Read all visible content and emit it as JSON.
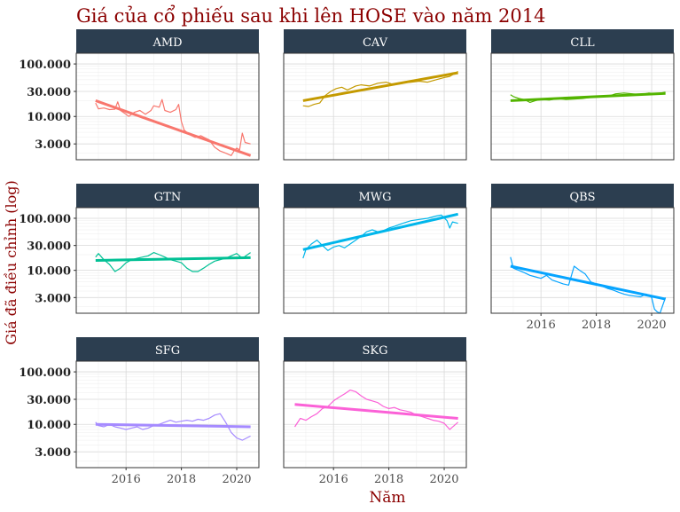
{
  "title": "Giá của cổ phiếu sau khi lên HOSE vào năm 2014",
  "colors": {
    "title": "#8b0000",
    "strip": "#2c3e50",
    "strip_text": "#ffffff",
    "grid": "#d9d9d9",
    "axis_text": "#4d4d4d"
  },
  "chart_data": {
    "type": "line",
    "title": "Giá của cổ phiếu sau khi lên HOSE vào năm 2014",
    "xlabel": "Năm",
    "ylabel": "Giá đã điều chỉnh (log)",
    "y_scale": "log10",
    "ylim": [
      1500,
      160000
    ],
    "xlim": [
      2014.2,
      2020.8
    ],
    "x_ticks": [
      2016,
      2018,
      2020
    ],
    "x_tick_labels": [
      "2016",
      "2018",
      "2020"
    ],
    "y_ticks": [
      3000,
      10000,
      30000,
      100000
    ],
    "y_tick_labels": [
      "3.000",
      "10.000",
      "30.000",
      "100.000"
    ],
    "series": [
      {
        "name": "AMD",
        "color": "#f8766d",
        "x": [
          2014.9,
          2015.0,
          2015.2,
          2015.4,
          2015.6,
          2015.7,
          2015.8,
          2016.0,
          2016.1,
          2016.3,
          2016.5,
          2016.7,
          2016.9,
          2017.0,
          2017.2,
          2017.3,
          2017.4,
          2017.6,
          2017.8,
          2017.9,
          2018.0,
          2018.1,
          2018.3,
          2018.5,
          2018.7,
          2018.9,
          2019.0,
          2019.2,
          2019.4,
          2019.6,
          2019.8,
          2019.9,
          2020.0,
          2020.1,
          2020.2,
          2020.3,
          2020.5
        ],
        "values": [
          18000,
          14000,
          14500,
          13500,
          13800,
          19000,
          13000,
          11000,
          10000,
          12000,
          13000,
          11000,
          13000,
          16000,
          15000,
          21000,
          13000,
          12000,
          13500,
          17000,
          8000,
          5500,
          4500,
          4000,
          4300,
          3800,
          3600,
          2600,
          2200,
          2000,
          1800,
          2200,
          2500,
          2300,
          4800,
          3200,
          3000
        ],
        "trend": [
          20000,
          1800
        ]
      },
      {
        "name": "CAV",
        "color": "#c49a00",
        "x": [
          2014.9,
          2015.1,
          2015.3,
          2015.5,
          2015.7,
          2015.9,
          2016.1,
          2016.3,
          2016.5,
          2016.8,
          2017.0,
          2017.3,
          2017.6,
          2017.9,
          2018.2,
          2018.5,
          2018.8,
          2019.1,
          2019.4,
          2019.7,
          2020.0,
          2020.2,
          2020.5
        ],
        "values": [
          16000,
          15500,
          17000,
          18000,
          25000,
          30000,
          34000,
          36000,
          32000,
          38000,
          40000,
          38000,
          43000,
          45000,
          40000,
          44000,
          45000,
          47000,
          45000,
          50000,
          55000,
          58000,
          72000
        ],
        "trend": [
          20000,
          68000
        ]
      },
      {
        "name": "CLL",
        "color": "#53b400",
        "x": [
          2014.9,
          2015.0,
          2015.2,
          2015.4,
          2015.6,
          2015.8,
          2016.0,
          2016.3,
          2016.6,
          2016.9,
          2017.2,
          2017.5,
          2017.8,
          2018.1,
          2018.4,
          2018.7,
          2019.0,
          2019.3,
          2019.6,
          2019.9,
          2020.2,
          2020.5
        ],
        "values": [
          26000,
          24000,
          22000,
          21000,
          18500,
          20000,
          21000,
          20500,
          22000,
          21000,
          21500,
          22000,
          23000,
          24000,
          24000,
          27000,
          28000,
          27000,
          26000,
          28000,
          27000,
          29000
        ],
        "trend": [
          20000,
          27500
        ]
      },
      {
        "name": "GTN",
        "color": "#00c094",
        "x": [
          2014.9,
          2015.0,
          2015.2,
          2015.4,
          2015.6,
          2015.8,
          2016.0,
          2016.2,
          2016.4,
          2016.6,
          2016.8,
          2017.0,
          2017.2,
          2017.4,
          2017.6,
          2017.8,
          2018.0,
          2018.2,
          2018.4,
          2018.6,
          2018.8,
          2019.0,
          2019.2,
          2019.4,
          2019.6,
          2019.8,
          2020.0,
          2020.2,
          2020.5
        ],
        "values": [
          18000,
          21000,
          16000,
          13000,
          9500,
          11000,
          14000,
          16000,
          17000,
          18000,
          19000,
          22000,
          20000,
          18000,
          16000,
          15000,
          14000,
          11000,
          9500,
          9500,
          11000,
          13000,
          15000,
          16000,
          17000,
          19000,
          21000,
          17000,
          22000
        ],
        "trend": [
          15500,
          17500
        ]
      },
      {
        "name": "MWG",
        "color": "#00b6eb",
        "x": [
          2014.9,
          2015.0,
          2015.2,
          2015.4,
          2015.6,
          2015.8,
          2016.0,
          2016.2,
          2016.4,
          2016.6,
          2016.8,
          2017.0,
          2017.2,
          2017.4,
          2017.6,
          2017.8,
          2018.0,
          2018.2,
          2018.5,
          2018.8,
          2019.1,
          2019.4,
          2019.7,
          2019.9,
          2020.1,
          2020.2,
          2020.3,
          2020.5
        ],
        "values": [
          17000,
          25000,
          32000,
          38000,
          30000,
          24000,
          28000,
          30000,
          27000,
          32000,
          38000,
          45000,
          55000,
          60000,
          55000,
          58000,
          65000,
          70000,
          80000,
          90000,
          95000,
          100000,
          110000,
          115000,
          90000,
          65000,
          85000,
          80000
        ],
        "trend": [
          25000,
          120000
        ]
      },
      {
        "name": "QBS",
        "color": "#06a4ff",
        "x": [
          2014.9,
          2015.0,
          2015.2,
          2015.4,
          2015.6,
          2015.8,
          2016.0,
          2016.2,
          2016.4,
          2016.6,
          2016.8,
          2017.0,
          2017.2,
          2017.4,
          2017.6,
          2017.8,
          2018.0,
          2018.2,
          2018.4,
          2018.6,
          2018.8,
          2019.0,
          2019.2,
          2019.4,
          2019.6,
          2019.8,
          2020.0,
          2020.1,
          2020.2,
          2020.3,
          2020.5
        ],
        "values": [
          18000,
          11000,
          10000,
          9000,
          8000,
          7500,
          7000,
          8000,
          6500,
          6000,
          5500,
          5200,
          12000,
          10000,
          8500,
          6000,
          5500,
          5000,
          4500,
          4200,
          3800,
          3500,
          3300,
          3200,
          3100,
          3500,
          3000,
          1800,
          1600,
          1500,
          3000
        ],
        "trend": [
          12000,
          2800
        ]
      },
      {
        "name": "SFG",
        "color": "#a58aff",
        "x": [
          2014.9,
          2015.0,
          2015.2,
          2015.4,
          2015.6,
          2015.8,
          2016.0,
          2016.2,
          2016.4,
          2016.6,
          2016.8,
          2017.0,
          2017.2,
          2017.4,
          2017.6,
          2017.8,
          2018.0,
          2018.2,
          2018.4,
          2018.6,
          2018.8,
          2019.0,
          2019.2,
          2019.4,
          2019.6,
          2019.8,
          2020.0,
          2020.2,
          2020.5
        ],
        "values": [
          11000,
          9500,
          9000,
          10000,
          9000,
          8500,
          8000,
          8500,
          9000,
          8000,
          8500,
          9500,
          10000,
          11000,
          12000,
          11000,
          11500,
          12000,
          11500,
          12500,
          12000,
          13000,
          15000,
          16000,
          11000,
          7000,
          5500,
          5000,
          6000
        ],
        "trend": [
          10000,
          9000
        ]
      },
      {
        "name": "SKG",
        "color": "#fb61d7",
        "x": [
          2014.6,
          2014.8,
          2015.0,
          2015.2,
          2015.4,
          2015.6,
          2015.8,
          2016.0,
          2016.2,
          2016.4,
          2016.6,
          2016.8,
          2017.0,
          2017.2,
          2017.4,
          2017.6,
          2017.8,
          2018.0,
          2018.2,
          2018.4,
          2018.6,
          2018.8,
          2019.0,
          2019.2,
          2019.4,
          2019.6,
          2019.8,
          2020.0,
          2020.2,
          2020.5
        ],
        "values": [
          9000,
          13000,
          12000,
          14000,
          16000,
          20000,
          22000,
          28000,
          33000,
          38000,
          45000,
          42000,
          35000,
          30000,
          28000,
          26000,
          22000,
          20000,
          21000,
          19000,
          18000,
          17000,
          15000,
          14000,
          13000,
          12000,
          11500,
          10500,
          8000,
          11000
        ],
        "trend": [
          24000,
          13000
        ]
      }
    ]
  }
}
